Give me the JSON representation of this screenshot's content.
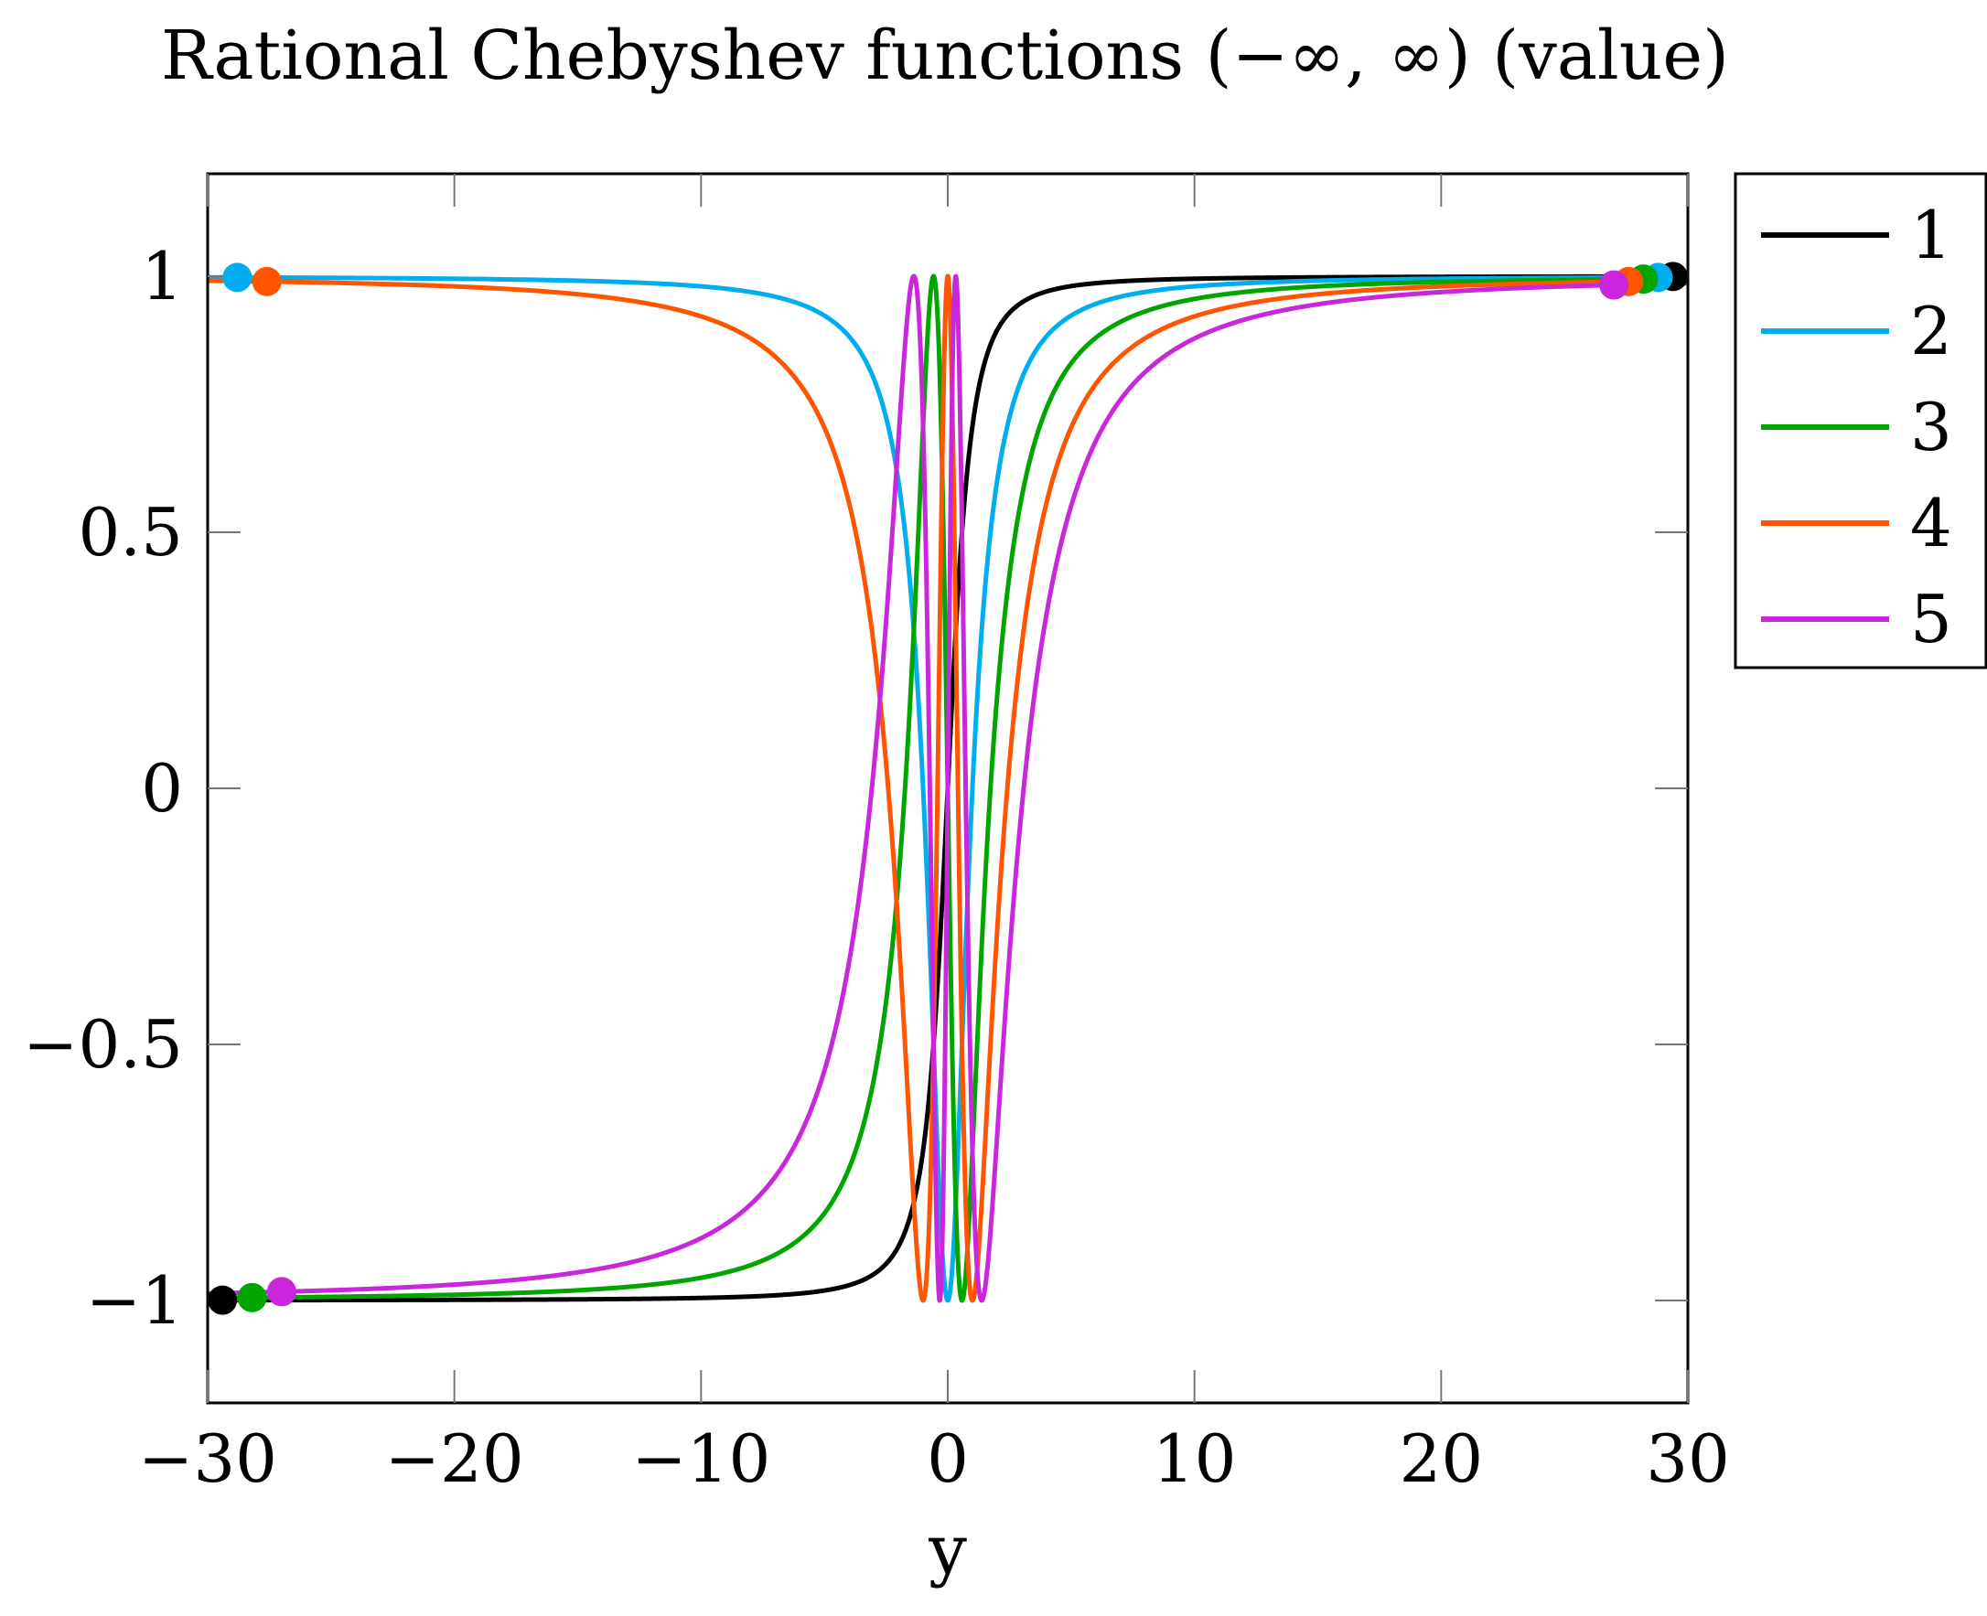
{
  "chart_data": {
    "type": "line",
    "title": "Rational Chebyshev functions (−∞, ∞) (value)",
    "xlabel": "y",
    "ylabel": "",
    "xlim": [
      -30,
      30
    ],
    "ylim": [
      -1.2,
      1.2
    ],
    "xticks": [
      -30,
      -20,
      -10,
      0,
      10,
      20,
      30
    ],
    "xtick_labels": [
      "−30",
      "−20",
      "−10",
      "0",
      "10",
      "20",
      "30"
    ],
    "yticks": [
      -1,
      -0.5,
      0,
      0.5,
      1
    ],
    "ytick_labels": [
      "−1",
      "−0.5",
      "0",
      "0.5",
      "1"
    ],
    "grid": false,
    "legend_position": "outside-top-right",
    "series": [
      {
        "name": "1",
        "degree": 1,
        "color": "#000000",
        "marker_x": [
          -29.4,
          29.4
        ]
      },
      {
        "name": "2",
        "degree": 2,
        "color": "#00AEEF",
        "marker_x": [
          -28.8,
          28.8
        ]
      },
      {
        "name": "3",
        "degree": 3,
        "color": "#00A500",
        "marker_x": [
          -28.2,
          28.2
        ]
      },
      {
        "name": "4",
        "degree": 4,
        "color": "#FF5500",
        "marker_x": [
          -27.6,
          27.6
        ]
      },
      {
        "name": "5",
        "degree": 5,
        "color": "#C927DB",
        "marker_x": [
          -27.0,
          27.0
        ]
      }
    ]
  }
}
